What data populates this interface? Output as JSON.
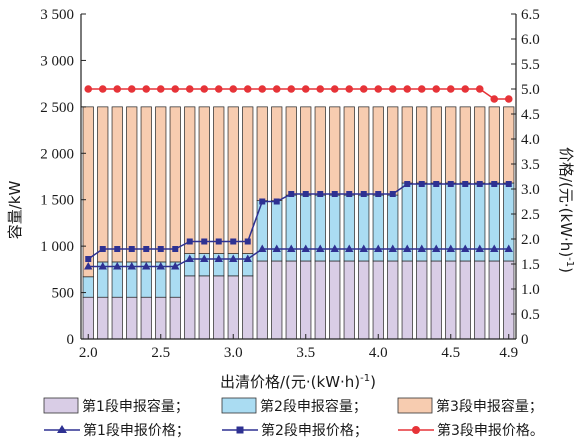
{
  "chart_data": {
    "type": "bar",
    "stacked": true,
    "xlabel": "出清价格/(元·(kW·h)",
    "xlabel_sup": "-1",
    "xlabel_end": ")",
    "ylabel": "容量/kW",
    "ylabel2": "价格/(元·(kW·h)",
    "ylabel2_sup": "-1",
    "ylabel2_end": ")",
    "xlim": [
      1.95,
      4.95
    ],
    "ylim": [
      0,
      3500
    ],
    "y2lim": [
      0,
      6.5
    ],
    "xticks": [
      {
        "value": 2.0,
        "label": "2.0"
      },
      {
        "value": 2.5,
        "label": "2.5"
      },
      {
        "value": 3.0,
        "label": "3.0"
      },
      {
        "value": 3.5,
        "label": "3.5"
      },
      {
        "value": 4.0,
        "label": "4.0"
      },
      {
        "value": 4.5,
        "label": "4.5"
      },
      {
        "value": 4.9,
        "label": "4.9"
      }
    ],
    "yticks": [
      {
        "value": 0,
        "label": "0"
      },
      {
        "value": 500,
        "label": "500"
      },
      {
        "value": 1000,
        "label": "1 000"
      },
      {
        "value": 1500,
        "label": "1 500"
      },
      {
        "value": 2000,
        "label": "2 000"
      },
      {
        "value": 2500,
        "label": "2 500"
      },
      {
        "value": 3000,
        "label": "3 000"
      },
      {
        "value": 3500,
        "label": "3 500"
      }
    ],
    "y2ticks": [
      {
        "value": 0,
        "label": "0"
      },
      {
        "value": 0.5,
        "label": "0.5"
      },
      {
        "value": 1.0,
        "label": "1.0"
      },
      {
        "value": 1.5,
        "label": "1.5"
      },
      {
        "value": 2.0,
        "label": "2.0"
      },
      {
        "value": 2.5,
        "label": "2.5"
      },
      {
        "value": 3.0,
        "label": "3.0"
      },
      {
        "value": 3.5,
        "label": "3.5"
      },
      {
        "value": 4.0,
        "label": "4.0"
      },
      {
        "value": 4.5,
        "label": "4.5"
      },
      {
        "value": 5.0,
        "label": "5.0"
      },
      {
        "value": 5.5,
        "label": "5.5"
      },
      {
        "value": 6.0,
        "label": "6.0"
      },
      {
        "value": 6.5,
        "label": "6.5"
      }
    ],
    "x": [
      2.0,
      2.1,
      2.2,
      2.3,
      2.4,
      2.5,
      2.6,
      2.7,
      2.8,
      2.9,
      3.0,
      3.1,
      3.2,
      3.3,
      3.4,
      3.5,
      3.6,
      3.7,
      3.8,
      3.9,
      4.0,
      4.1,
      4.2,
      4.3,
      4.4,
      4.5,
      4.6,
      4.7,
      4.8,
      4.9
    ],
    "series": [
      {
        "name": "第1段申报容量；",
        "kind": "bar",
        "axis": "left",
        "color": "#d9cde6",
        "values": [
          450,
          450,
          450,
          450,
          450,
          450,
          450,
          680,
          680,
          680,
          680,
          680,
          840,
          840,
          840,
          840,
          840,
          840,
          840,
          840,
          840,
          840,
          840,
          840,
          840,
          840,
          840,
          840,
          840,
          840
        ]
      },
      {
        "name": "第2段申报容量；",
        "kind": "bar",
        "axis": "left",
        "color": "#aadcf2",
        "values": [
          220,
          380,
          380,
          380,
          380,
          380,
          380,
          240,
          240,
          240,
          240,
          240,
          650,
          650,
          710,
          710,
          710,
          710,
          710,
          710,
          710,
          710,
          840,
          840,
          840,
          840,
          840,
          840,
          840,
          840
        ]
      },
      {
        "name": "第3段申报容量；",
        "kind": "bar",
        "axis": "left",
        "color": "#f7ccb0",
        "values": [
          1830,
          1670,
          1670,
          1670,
          1670,
          1670,
          1670,
          1580,
          1580,
          1580,
          1580,
          1580,
          1010,
          1010,
          950,
          950,
          950,
          950,
          950,
          950,
          950,
          950,
          820,
          820,
          820,
          820,
          820,
          820,
          820,
          820
        ]
      },
      {
        "name": "第1段申报价格；",
        "kind": "line",
        "axis": "right",
        "color": "#2e3192",
        "marker": "triangle",
        "values": [
          1.45,
          1.45,
          1.45,
          1.45,
          1.45,
          1.45,
          1.45,
          1.6,
          1.6,
          1.6,
          1.6,
          1.6,
          1.8,
          1.8,
          1.8,
          1.8,
          1.8,
          1.8,
          1.8,
          1.8,
          1.8,
          1.8,
          1.8,
          1.8,
          1.8,
          1.8,
          1.8,
          1.8,
          1.8,
          1.8
        ]
      },
      {
        "name": "第2段申报价格；",
        "kind": "line",
        "axis": "right",
        "color": "#2e3192",
        "marker": "square",
        "values": [
          1.6,
          1.8,
          1.8,
          1.8,
          1.8,
          1.8,
          1.8,
          1.95,
          1.95,
          1.95,
          1.95,
          1.95,
          2.75,
          2.75,
          2.9,
          2.9,
          2.9,
          2.9,
          2.9,
          2.9,
          2.9,
          2.9,
          3.1,
          3.1,
          3.1,
          3.1,
          3.1,
          3.1,
          3.1,
          3.1
        ]
      },
      {
        "name": "第3段申报价格。",
        "kind": "line",
        "axis": "right",
        "color": "#e63338",
        "marker": "circle",
        "values": [
          5.0,
          5.0,
          5.0,
          5.0,
          5.0,
          5.0,
          5.0,
          5.0,
          5.0,
          5.0,
          5.0,
          5.0,
          5.0,
          5.0,
          5.0,
          5.0,
          5.0,
          5.0,
          5.0,
          5.0,
          5.0,
          5.0,
          5.0,
          5.0,
          5.0,
          5.0,
          5.0,
          5.0,
          4.8,
          4.8
        ]
      }
    ],
    "legend_position": "bottom"
  }
}
